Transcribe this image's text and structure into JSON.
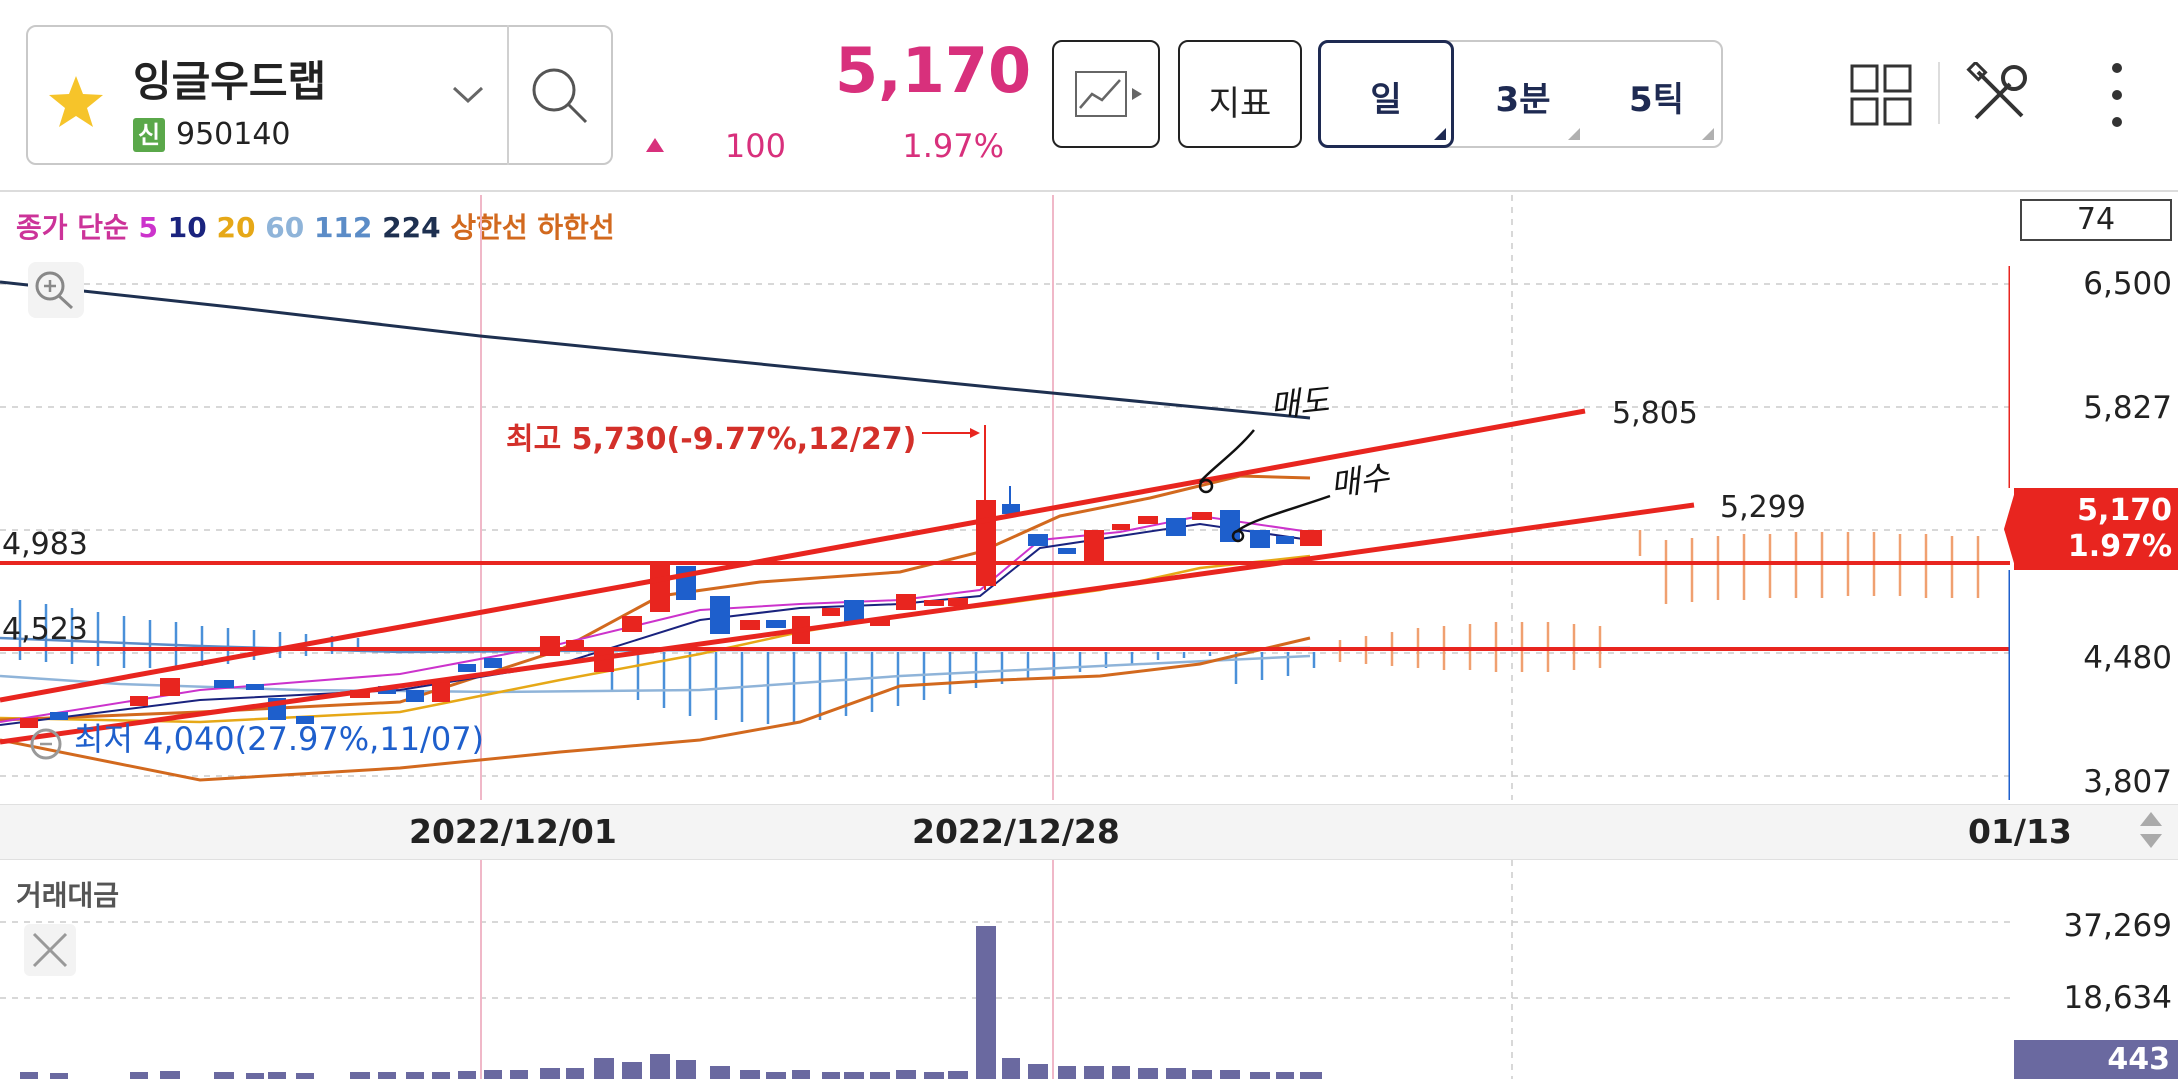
{
  "header": {
    "stock_name": "잉글우드랩",
    "badge": "신",
    "stock_code": "950140",
    "price": "5,170",
    "change_value": "100",
    "change_percent": "1.97%",
    "indicator_button": "지표",
    "tabs": [
      {
        "label": "일",
        "selected": true
      },
      {
        "label": "3분",
        "selected": false
      },
      {
        "label": "5틱",
        "selected": false
      }
    ],
    "icons": [
      "star-icon",
      "chevron-down-icon",
      "search-icon",
      "chart-type-icon",
      "layout-grid-icon",
      "tools-icon",
      "more-vertical-icon"
    ]
  },
  "chart": {
    "legend": {
      "prefix": "종가 단순",
      "periods": [
        {
          "label": "5",
          "color": "#cc33cc"
        },
        {
          "label": "10",
          "color": "#1a237e"
        },
        {
          "label": "20",
          "color": "#e6a817"
        },
        {
          "label": "60",
          "color": "#8fb4d9"
        },
        {
          "label": "112",
          "color": "#5b8cc7"
        },
        {
          "label": "224",
          "color": "#1e3050"
        }
      ],
      "upper_limit": "상한선",
      "lower_limit": "하한선"
    },
    "top_box_value": "74",
    "y_axis_labels": [
      "6,500",
      "5,827",
      "4,480",
      "3,807"
    ],
    "current_price_tag": {
      "price": "5,170",
      "percent": "1.97%"
    },
    "left_levels": [
      "4,983",
      "4,523"
    ],
    "trendline_labels": [
      "5,805",
      "5,299"
    ],
    "high_annotation": "최고 5,730(-9.77%,12/27)",
    "low_annotation": "최저 4,040(27.97%,11/07)",
    "handwritten": {
      "sell": "매도",
      "buy": "매수"
    },
    "x_axis_labels": [
      "2022/12/01",
      "2022/12/28",
      "01/13"
    ]
  },
  "volume": {
    "title": "거래대금",
    "y_axis_labels": [
      "37,269",
      "18,634"
    ],
    "current_tag": "443"
  },
  "colors": {
    "up": "#e8251f",
    "down": "#1e5fcc",
    "accent_pink": "#d8307c",
    "navy": "#1e2a52",
    "volume": "#6a69a0"
  }
}
